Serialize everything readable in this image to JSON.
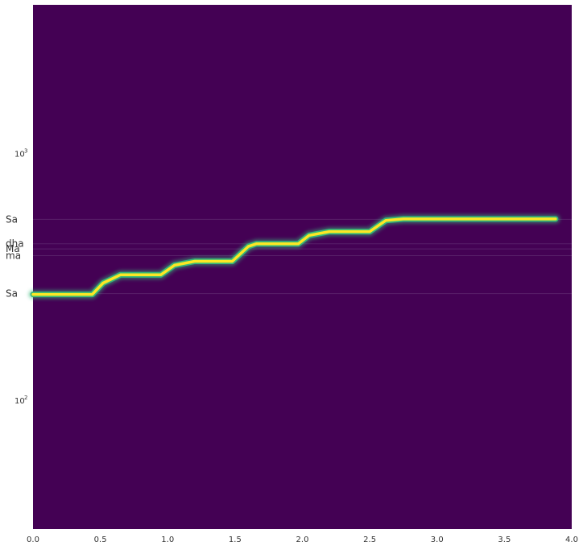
{
  "chart_data": {
    "type": "heatmap",
    "title": "",
    "xlabel": "",
    "ylabel": "",
    "xlim": [
      0.0,
      4.0
    ],
    "ylim": [
      30,
      4000
    ],
    "y_scale": "log",
    "x_ticks": [
      "0.0",
      "0.5",
      "1.0",
      "1.5",
      "2.0",
      "2.5",
      "3.0",
      "3.5",
      "4.0"
    ],
    "x_tick_values": [
      0.0,
      0.5,
      1.0,
      1.5,
      2.0,
      2.5,
      3.0,
      3.5,
      4.0
    ],
    "y_ticks": [
      {
        "value": 100,
        "base": "10",
        "exp": "2"
      },
      {
        "value": 1000,
        "base": "10",
        "exp": "3"
      }
    ],
    "background_color": "#440154",
    "reference_lines": [
      {
        "label": "Sa",
        "value": 540
      },
      {
        "label": "dha",
        "value": 430
      },
      {
        "label": "Ma",
        "value": 410
      },
      {
        "label": "ma",
        "value": 385
      },
      {
        "label": "Sa",
        "value": 270
      }
    ],
    "pitch_track": {
      "color_core": "#fde725",
      "color_glow": "#35b779",
      "t": [
        0.0,
        0.44,
        0.52,
        0.65,
        0.95,
        1.05,
        1.2,
        1.48,
        1.6,
        1.66,
        1.97,
        2.05,
        2.2,
        2.5,
        2.62,
        2.75,
        3.88
      ],
      "f": [
        268,
        268,
        298,
        322,
        322,
        352,
        365,
        365,
        420,
        430,
        430,
        465,
        482,
        482,
        535,
        542,
        542
      ]
    }
  }
}
